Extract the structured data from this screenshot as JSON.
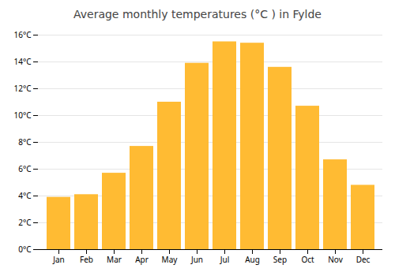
{
  "chart_data": {
    "type": "bar",
    "title": "Average monthly temperatures (°C ) in Fylde",
    "categories": [
      "Jan",
      "Feb",
      "Mar",
      "Apr",
      "May",
      "Jun",
      "Jul",
      "Aug",
      "Sep",
      "Oct",
      "Nov",
      "Dec"
    ],
    "values": [
      3.9,
      4.1,
      5.7,
      7.7,
      11.0,
      13.9,
      15.5,
      15.4,
      13.6,
      10.7,
      6.7,
      4.8
    ],
    "color": "#FFBB33",
    "ylim": [
      0,
      16
    ],
    "yticks": [
      {
        "value": 0,
        "label": "0°C"
      },
      {
        "value": 2,
        "label": "2°C"
      },
      {
        "value": 4,
        "label": "4°C"
      },
      {
        "value": 6,
        "label": "6°C"
      },
      {
        "value": 8,
        "label": "8°C"
      },
      {
        "value": 10,
        "label": "10°C"
      },
      {
        "value": 12,
        "label": "12°C"
      },
      {
        "value": 14,
        "label": "14°C"
      },
      {
        "value": 16,
        "label": "16°C"
      }
    ],
    "grid": true
  }
}
